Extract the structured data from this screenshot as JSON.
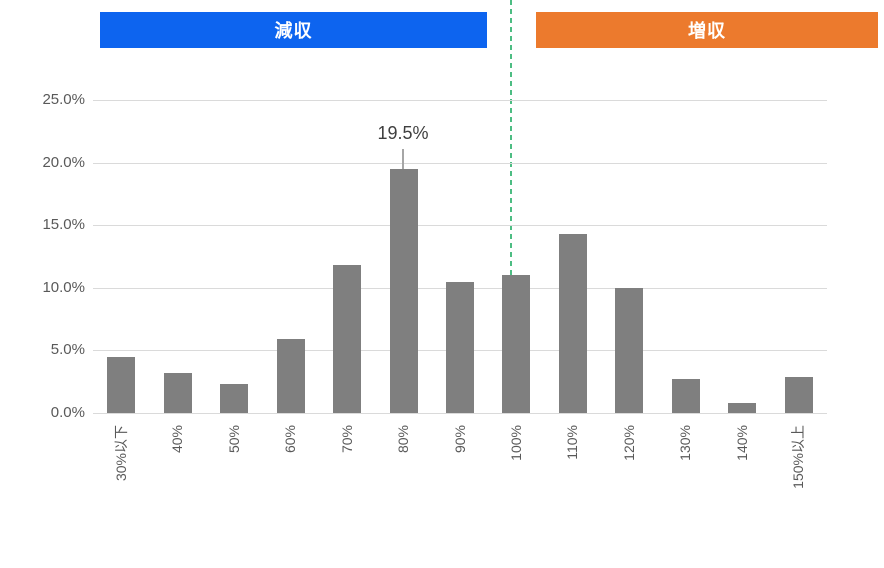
{
  "banners": {
    "decrease": {
      "label": "減収",
      "color": "#0d64ef"
    },
    "increase": {
      "label": "増収",
      "color": "#ec7a2d"
    }
  },
  "divider": {
    "color": "#4dbd83",
    "position_category": "100%"
  },
  "annotation": {
    "text": "19.5%",
    "category": "80%"
  },
  "chart_data": {
    "type": "bar",
    "title": "",
    "xlabel": "",
    "ylabel": "",
    "categories": [
      "30%以下",
      "40%",
      "50%",
      "60%",
      "70%",
      "80%",
      "90%",
      "100%",
      "110%",
      "120%",
      "130%",
      "140%",
      "150%以上"
    ],
    "values": [
      4.5,
      3.2,
      2.3,
      5.9,
      11.8,
      19.5,
      10.5,
      11.0,
      14.3,
      10.0,
      2.7,
      0.8,
      2.9
    ],
    "unit": "%",
    "y_tick_labels": [
      "0.0%",
      "5.0%",
      "10.0%",
      "15.0%",
      "20.0%",
      "25.0%"
    ],
    "y_tick_values": [
      0,
      5,
      10,
      15,
      20,
      25
    ],
    "ylim": [
      0,
      25
    ],
    "grid": true,
    "legend": false,
    "bar_color": "#7f7f7f",
    "gridline_color": "#dadada",
    "axis_text_color": "#595959",
    "data_label": {
      "category": "80%",
      "text": "19.5%"
    }
  }
}
